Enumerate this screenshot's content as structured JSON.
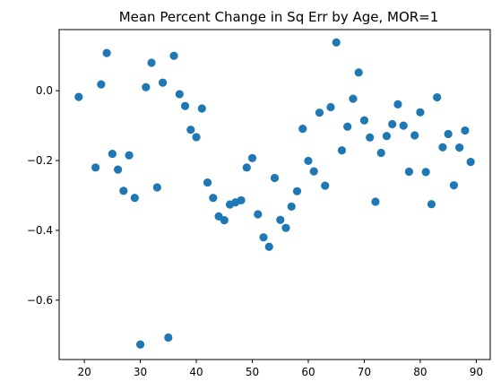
{
  "chart_data": {
    "type": "scatter",
    "title": "Mean Percent Change in Sq Err by Age, MOR=1",
    "xlabel": "",
    "ylabel": "",
    "xlim": [
      15.5,
      92.5
    ],
    "ylim": [
      -0.77,
      0.175
    ],
    "xticks": [
      20,
      30,
      40,
      50,
      60,
      70,
      80,
      90
    ],
    "yticks": [
      0.0,
      -0.2,
      -0.4,
      -0.6
    ],
    "ytick_labels": [
      "0.0",
      "−0.2",
      "−0.4",
      "−0.6"
    ],
    "grid": false,
    "color": "#1f77b4",
    "points": [
      [
        19,
        -0.018
      ],
      [
        22,
        -0.22
      ],
      [
        23,
        0.018
      ],
      [
        24,
        0.108
      ],
      [
        25,
        -0.181
      ],
      [
        26,
        -0.226
      ],
      [
        27,
        -0.287
      ],
      [
        28,
        -0.185
      ],
      [
        29,
        -0.307
      ],
      [
        30,
        -0.727
      ],
      [
        31,
        0.01
      ],
      [
        32,
        0.08
      ],
      [
        33,
        -0.277
      ],
      [
        34,
        0.023
      ],
      [
        35,
        -0.707
      ],
      [
        36,
        0.1
      ],
      [
        37,
        -0.01
      ],
      [
        38,
        -0.044
      ],
      [
        39,
        -0.112
      ],
      [
        40,
        -0.133
      ],
      [
        41,
        -0.051
      ],
      [
        42,
        -0.263
      ],
      [
        43,
        -0.307
      ],
      [
        44,
        -0.36
      ],
      [
        45,
        -0.371
      ],
      [
        46,
        -0.326
      ],
      [
        47,
        -0.32
      ],
      [
        48,
        -0.314
      ],
      [
        49,
        -0.22
      ],
      [
        50,
        -0.193
      ],
      [
        51,
        -0.354
      ],
      [
        52,
        -0.42
      ],
      [
        53,
        -0.447
      ],
      [
        54,
        -0.25
      ],
      [
        55,
        -0.37
      ],
      [
        56,
        -0.393
      ],
      [
        57,
        -0.332
      ],
      [
        58,
        -0.288
      ],
      [
        59,
        -0.109
      ],
      [
        60,
        -0.201
      ],
      [
        61,
        -0.231
      ],
      [
        62,
        -0.063
      ],
      [
        63,
        -0.272
      ],
      [
        64,
        -0.047
      ],
      [
        65,
        0.138
      ],
      [
        66,
        -0.171
      ],
      [
        67,
        -0.103
      ],
      [
        68,
        -0.023
      ],
      [
        69,
        0.052
      ],
      [
        70,
        -0.085
      ],
      [
        71,
        -0.134
      ],
      [
        72,
        -0.318
      ],
      [
        73,
        -0.178
      ],
      [
        74,
        -0.13
      ],
      [
        75,
        -0.096
      ],
      [
        76,
        -0.039
      ],
      [
        77,
        -0.1
      ],
      [
        78,
        -0.232
      ],
      [
        79,
        -0.128
      ],
      [
        80,
        -0.062
      ],
      [
        81,
        -0.233
      ],
      [
        82,
        -0.325
      ],
      [
        83,
        -0.019
      ],
      [
        84,
        -0.162
      ],
      [
        85,
        -0.124
      ],
      [
        86,
        -0.271
      ],
      [
        87,
        -0.163
      ],
      [
        88,
        -0.114
      ],
      [
        89,
        -0.204
      ]
    ]
  }
}
